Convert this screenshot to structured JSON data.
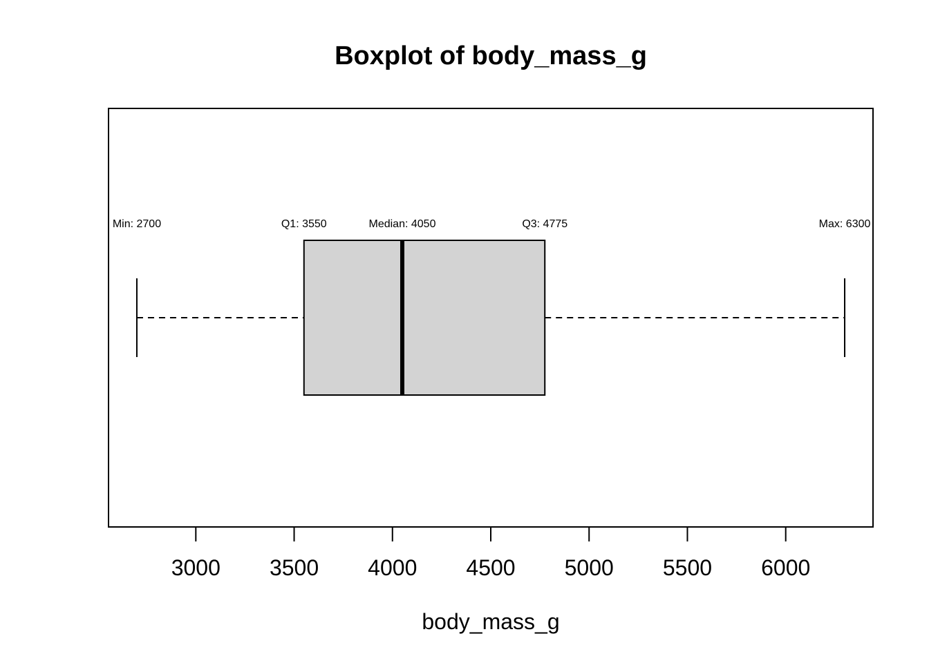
{
  "chart_data": {
    "type": "boxplot",
    "orientation": "horizontal",
    "title": "Boxplot of body_mass_g",
    "xlabel": "body_mass_g",
    "ylabel": "",
    "xlim": [
      2556,
      6444
    ],
    "ticks": [
      3000,
      3500,
      4000,
      4500,
      5000,
      5500,
      6000
    ],
    "tick_labels": [
      "3000",
      "3500",
      "4000",
      "4500",
      "5000",
      "5500",
      "6000"
    ],
    "grid": false,
    "stats": {
      "min": 2700,
      "q1": 3550,
      "median": 4050,
      "q3": 4775,
      "max": 6300
    },
    "annotations": [
      {
        "key": "min",
        "text": "Min: 2700",
        "value": 2700
      },
      {
        "key": "q1",
        "text": "Q1: 3550",
        "value": 3550
      },
      {
        "key": "median",
        "text": "Median: 4050",
        "value": 4050
      },
      {
        "key": "q3",
        "text": "Q3: 4775",
        "value": 4775
      },
      {
        "key": "max",
        "text": "Max: 6300",
        "value": 6300
      }
    ],
    "colors": {
      "box_fill": "#d3d3d3",
      "line": "#000000"
    }
  }
}
